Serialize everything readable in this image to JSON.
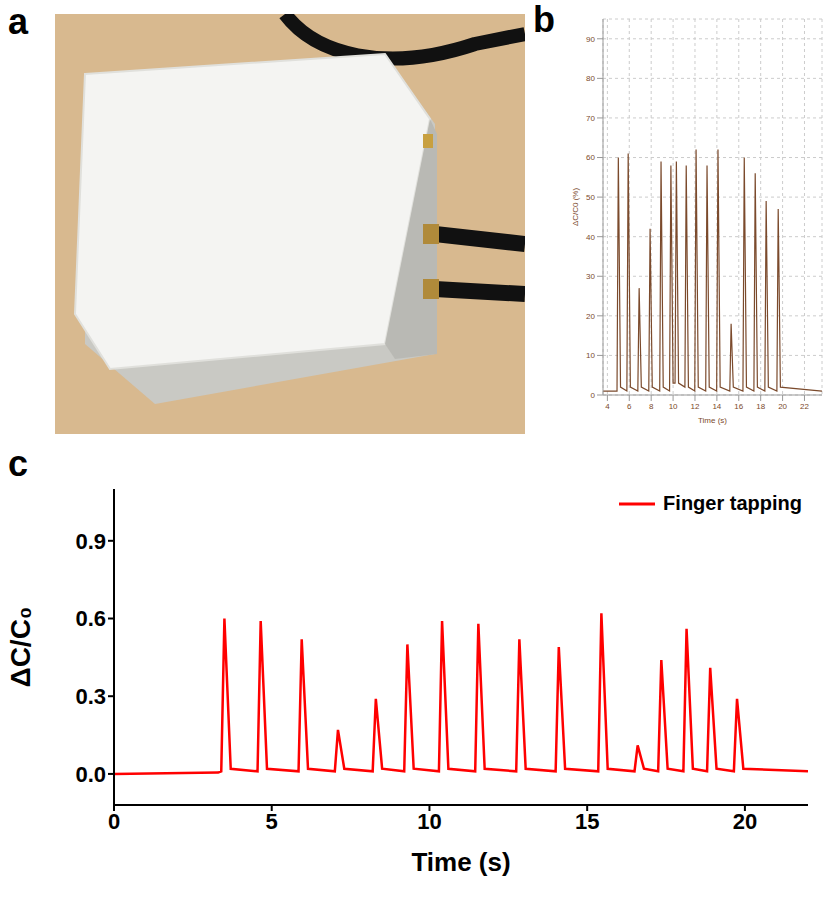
{
  "panel_labels": [
    "a",
    "b",
    "c"
  ],
  "chart_data": [
    {
      "type": "line",
      "x_label": "Time (s)",
      "y_label": "ΔC/C0 (%)",
      "xlim": [
        3.6,
        23.6
      ],
      "ylim": [
        0,
        95
      ],
      "xticks": [
        4,
        6,
        8,
        10,
        12,
        14,
        16,
        18,
        20,
        22
      ],
      "yticks": [
        0,
        10,
        20,
        30,
        40,
        50,
        60,
        70,
        80,
        90
      ],
      "grid": true,
      "series": [
        {
          "color": "#7b4a2c",
          "x": [
            3.6,
            4.88,
            5.0,
            5.2,
            5.78,
            5.9,
            6.1,
            6.78,
            6.9,
            7.1,
            7.78,
            7.9,
            8.1,
            8.78,
            8.9,
            9.1,
            9.68,
            9.8,
            10.0,
            10.18,
            10.3,
            10.5,
            11.08,
            11.2,
            11.4,
            11.98,
            12.1,
            12.3,
            12.98,
            13.1,
            13.3,
            13.98,
            14.1,
            14.3,
            15.18,
            15.3,
            15.5,
            16.38,
            16.5,
            16.7,
            17.38,
            17.5,
            17.7,
            18.38,
            18.5,
            18.7,
            19.48,
            19.6,
            19.8,
            23.6
          ],
          "values": [
            1,
            1,
            60,
            2,
            1,
            61,
            2,
            1,
            27,
            2,
            1,
            42,
            2,
            1,
            59,
            2,
            1,
            58,
            3,
            3,
            59,
            3,
            2,
            58,
            2,
            1,
            62,
            2,
            1,
            58,
            2,
            1,
            62,
            2,
            1,
            18,
            2,
            1,
            60,
            2,
            1,
            56,
            2,
            1,
            49,
            2,
            1,
            47,
            2,
            1
          ]
        }
      ]
    },
    {
      "type": "line",
      "x_label": "Time (s)",
      "y_label": "ΔC/C₀",
      "xlim": [
        0,
        22
      ],
      "ylim": [
        -0.12,
        1.1
      ],
      "xticks": [
        0,
        5,
        10,
        15,
        20
      ],
      "yticks": [
        {
          "value": 0,
          "label": "0.0"
        },
        {
          "value": 0.3,
          "label": "0.3"
        },
        {
          "value": 0.6,
          "label": "0.6"
        },
        {
          "value": 0.9,
          "label": "0.9"
        }
      ],
      "grid": false,
      "legend": "upper right",
      "series": [
        {
          "name": "Finger tapping",
          "color": "#ff0000",
          "x": [
            0,
            3.3,
            3.4,
            3.5,
            3.7,
            4.55,
            4.65,
            4.85,
            5.85,
            5.95,
            6.15,
            7.0,
            7.1,
            7.3,
            8.2,
            8.3,
            8.5,
            9.2,
            9.3,
            9.5,
            10.3,
            10.4,
            10.6,
            11.45,
            11.55,
            11.75,
            12.75,
            12.85,
            13.05,
            14.0,
            14.1,
            14.3,
            15.35,
            15.45,
            15.65,
            16.5,
            16.6,
            16.8,
            17.25,
            17.35,
            17.55,
            18.05,
            18.15,
            18.35,
            18.8,
            18.9,
            19.1,
            19.65,
            19.75,
            19.95,
            22
          ],
          "values": [
            0,
            0.005,
            0.01,
            0.6,
            0.02,
            0.01,
            0.59,
            0.02,
            0.01,
            0.52,
            0.02,
            0.01,
            0.17,
            0.02,
            0.01,
            0.29,
            0.02,
            0.01,
            0.5,
            0.02,
            0.01,
            0.59,
            0.02,
            0.01,
            0.58,
            0.02,
            0.01,
            0.52,
            0.02,
            0.01,
            0.49,
            0.02,
            0.01,
            0.62,
            0.02,
            0.01,
            0.11,
            0.02,
            0.01,
            0.44,
            0.02,
            0.01,
            0.56,
            0.02,
            0.01,
            0.41,
            0.02,
            0.01,
            0.29,
            0.02,
            0.01
          ]
        }
      ]
    }
  ]
}
